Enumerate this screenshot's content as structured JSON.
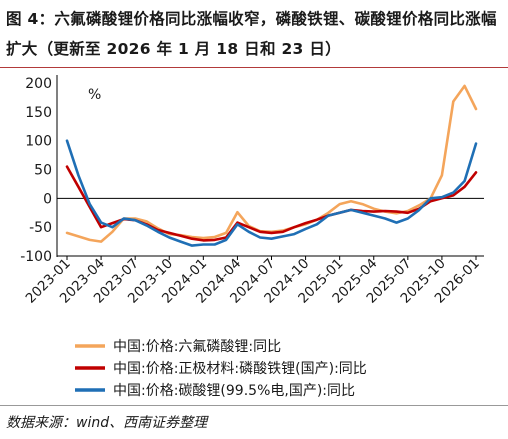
{
  "figure": {
    "title": "图 4：六氟磷酸锂价格同比涨幅收窄，磷酸铁锂、碳酸锂价格同比涨幅扩大（更新至 2026 年 1 月 18 日和 23 日）",
    "source": "数据来源：wind、西南证券整理"
  },
  "chart_data": {
    "type": "line",
    "ylabel": "%",
    "ylim": [
      -100,
      200
    ],
    "yticks": [
      "200",
      "150",
      "100",
      "50",
      "0",
      "-50",
      "-100"
    ],
    "xticks": [
      "2023-01",
      "2023-04",
      "2023-07",
      "2023-10",
      "2024-01",
      "2024-04",
      "2024-07",
      "2024-10",
      "2025-01",
      "2025-04",
      "2025-07",
      "2025-10",
      "2026-01"
    ],
    "grid": false,
    "legend_position": "bottom",
    "series": [
      {
        "name": "中国:价格:六氟磷酸锂:同比",
        "color": "#F4A55B",
        "points": [
          [
            "2023-01",
            -60
          ],
          [
            "2023-02",
            -66
          ],
          [
            "2023-03",
            -72
          ],
          [
            "2023-04",
            -75
          ],
          [
            "2023-05",
            -58
          ],
          [
            "2023-06",
            -35
          ],
          [
            "2023-07",
            -35
          ],
          [
            "2023-08",
            -40
          ],
          [
            "2023-09",
            -52
          ],
          [
            "2023-10",
            -62
          ],
          [
            "2023-11",
            -64
          ],
          [
            "2023-12",
            -67
          ],
          [
            "2024-01",
            -69
          ],
          [
            "2024-02",
            -67
          ],
          [
            "2024-03",
            -60
          ],
          [
            "2024-04",
            -24
          ],
          [
            "2024-05",
            -48
          ],
          [
            "2024-06",
            -57
          ],
          [
            "2024-07",
            -58
          ],
          [
            "2024-08",
            -56
          ],
          [
            "2024-09",
            -50
          ],
          [
            "2024-10",
            -45
          ],
          [
            "2024-11",
            -37
          ],
          [
            "2024-12",
            -25
          ],
          [
            "2025-01",
            -10
          ],
          [
            "2025-02",
            -5
          ],
          [
            "2025-03",
            -10
          ],
          [
            "2025-04",
            -18
          ],
          [
            "2025-05",
            -23
          ],
          [
            "2025-06",
            -26
          ],
          [
            "2025-07",
            -22
          ],
          [
            "2025-08",
            -12
          ],
          [
            "2025-09",
            0
          ],
          [
            "2025-10",
            40
          ],
          [
            "2025-11",
            168
          ],
          [
            "2025-12",
            195
          ],
          [
            "2026-01",
            155
          ]
        ]
      },
      {
        "name": "中国:价格:正极材料:磷酸铁锂(国产):同比",
        "color": "#C00000",
        "points": [
          [
            "2023-01",
            55
          ],
          [
            "2023-02",
            20
          ],
          [
            "2023-03",
            -15
          ],
          [
            "2023-04",
            -50
          ],
          [
            "2023-05",
            -43
          ],
          [
            "2023-06",
            -36
          ],
          [
            "2023-07",
            -38
          ],
          [
            "2023-08",
            -45
          ],
          [
            "2023-09",
            -55
          ],
          [
            "2023-10",
            -60
          ],
          [
            "2023-11",
            -65
          ],
          [
            "2023-12",
            -70
          ],
          [
            "2024-01",
            -73
          ],
          [
            "2024-02",
            -72
          ],
          [
            "2024-03",
            -68
          ],
          [
            "2024-04",
            -42
          ],
          [
            "2024-05",
            -50
          ],
          [
            "2024-06",
            -58
          ],
          [
            "2024-07",
            -60
          ],
          [
            "2024-08",
            -58
          ],
          [
            "2024-09",
            -50
          ],
          [
            "2024-10",
            -43
          ],
          [
            "2024-11",
            -37
          ],
          [
            "2024-12",
            -30
          ],
          [
            "2025-01",
            -25
          ],
          [
            "2025-02",
            -20
          ],
          [
            "2025-03",
            -22
          ],
          [
            "2025-04",
            -23
          ],
          [
            "2025-05",
            -22
          ],
          [
            "2025-06",
            -23
          ],
          [
            "2025-07",
            -25
          ],
          [
            "2025-08",
            -18
          ],
          [
            "2025-09",
            -5
          ],
          [
            "2025-10",
            0
          ],
          [
            "2025-11",
            5
          ],
          [
            "2025-12",
            20
          ],
          [
            "2026-01",
            45
          ]
        ]
      },
      {
        "name": "中国:价格:碳酸锂(99.5%电,国产):同比",
        "color": "#1F6FB5",
        "points": [
          [
            "2023-01",
            100
          ],
          [
            "2023-02",
            40
          ],
          [
            "2023-03",
            -10
          ],
          [
            "2023-04",
            -42
          ],
          [
            "2023-05",
            -50
          ],
          [
            "2023-06",
            -35
          ],
          [
            "2023-07",
            -38
          ],
          [
            "2023-08",
            -47
          ],
          [
            "2023-09",
            -58
          ],
          [
            "2023-10",
            -68
          ],
          [
            "2023-11",
            -75
          ],
          [
            "2023-12",
            -82
          ],
          [
            "2024-01",
            -80
          ],
          [
            "2024-02",
            -80
          ],
          [
            "2024-03",
            -72
          ],
          [
            "2024-04",
            -45
          ],
          [
            "2024-05",
            -58
          ],
          [
            "2024-06",
            -68
          ],
          [
            "2024-07",
            -70
          ],
          [
            "2024-08",
            -66
          ],
          [
            "2024-09",
            -62
          ],
          [
            "2024-10",
            -53
          ],
          [
            "2024-11",
            -45
          ],
          [
            "2024-12",
            -30
          ],
          [
            "2025-01",
            -25
          ],
          [
            "2025-02",
            -20
          ],
          [
            "2025-03",
            -25
          ],
          [
            "2025-04",
            -30
          ],
          [
            "2025-05",
            -35
          ],
          [
            "2025-06",
            -42
          ],
          [
            "2025-07",
            -35
          ],
          [
            "2025-08",
            -20
          ],
          [
            "2025-09",
            0
          ],
          [
            "2025-10",
            2
          ],
          [
            "2025-11",
            10
          ],
          [
            "2025-12",
            30
          ],
          [
            "2026-01",
            95
          ]
        ]
      }
    ]
  }
}
